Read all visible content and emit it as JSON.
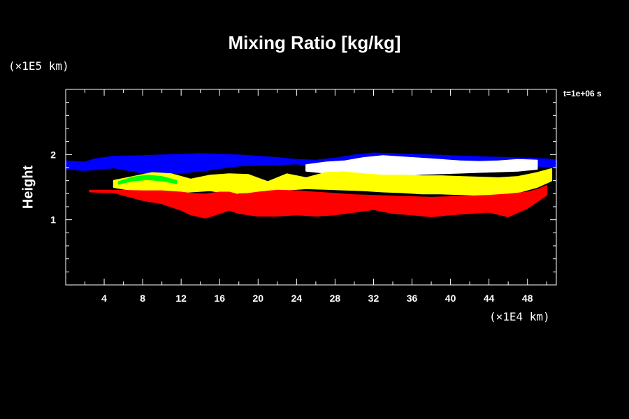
{
  "chart_data": {
    "type": "area",
    "title": "Mixing Ratio [kg/kg]",
    "ylabel": "Height",
    "y_unit_label": "(×1E5 km)",
    "x_unit_label": "(×1E4 km)",
    "time_label": "t=1e+06 s",
    "xlim": [
      0,
      51
    ],
    "ylim": [
      0,
      3
    ],
    "x_ticks": [
      4,
      8,
      12,
      16,
      20,
      24,
      28,
      32,
      36,
      40,
      44,
      48
    ],
    "y_ticks": [
      1,
      2
    ],
    "x_minor_step": 2,
    "y_minor_step": 0.2,
    "grid": false,
    "colors": {
      "background": "#000000",
      "axes": "#ffffff",
      "layer_blue": "#0000ff",
      "layer_white": "#ffffff",
      "layer_yellow": "#ffff00",
      "layer_green": "#00ff00",
      "layer_red": "#ff0000"
    },
    "layers": [
      {
        "color": "blue",
        "x": [
          0,
          2,
          3,
          5,
          8,
          10,
          12,
          14,
          16,
          18,
          20,
          22,
          24,
          26,
          28,
          30,
          32,
          34,
          36,
          38,
          40,
          42,
          44,
          46,
          48,
          50,
          51
        ],
        "top": [
          1.9,
          1.88,
          1.93,
          1.97,
          1.98,
          1.99,
          2.0,
          2.01,
          2.0,
          1.99,
          1.97,
          1.95,
          1.92,
          1.91,
          1.94,
          1.99,
          2.02,
          2.01,
          2.0,
          1.99,
          1.98,
          1.97,
          1.96,
          1.95,
          1.94,
          1.93,
          1.91
        ],
        "bottom": [
          1.78,
          1.76,
          1.77,
          1.8,
          1.72,
          1.7,
          1.72,
          1.75,
          1.79,
          1.83,
          1.84,
          1.85,
          1.86,
          1.83,
          1.8,
          1.82,
          1.81,
          1.79,
          1.78,
          1.77,
          1.76,
          1.76,
          1.79,
          1.82,
          1.83,
          1.82,
          1.8
        ]
      },
      {
        "color": "white",
        "x": [
          25,
          27,
          29,
          31,
          33,
          35,
          37,
          39,
          41,
          43,
          45,
          47,
          49
        ],
        "top": [
          1.84,
          1.88,
          1.9,
          1.95,
          1.98,
          1.96,
          1.94,
          1.92,
          1.9,
          1.89,
          1.9,
          1.92,
          1.91
        ],
        "bottom": [
          1.75,
          1.72,
          1.7,
          1.68,
          1.66,
          1.68,
          1.7,
          1.71,
          1.72,
          1.73,
          1.74,
          1.75,
          1.78
        ]
      },
      {
        "color": "yellow",
        "x": [
          5,
          7,
          9,
          11,
          13,
          15,
          17,
          19,
          21,
          23,
          25,
          27,
          29,
          31,
          33,
          35,
          37,
          39,
          41,
          43,
          45,
          47,
          49,
          50.5
        ],
        "top": [
          1.6,
          1.66,
          1.72,
          1.7,
          1.62,
          1.68,
          1.7,
          1.69,
          1.58,
          1.7,
          1.64,
          1.72,
          1.73,
          1.7,
          1.68,
          1.68,
          1.67,
          1.67,
          1.66,
          1.65,
          1.64,
          1.66,
          1.72,
          1.78
        ],
        "bottom": [
          1.5,
          1.45,
          1.42,
          1.4,
          1.43,
          1.45,
          1.4,
          1.42,
          1.45,
          1.46,
          1.48,
          1.47,
          1.46,
          1.45,
          1.43,
          1.42,
          1.4,
          1.4,
          1.39,
          1.38,
          1.38,
          1.42,
          1.5,
          1.6
        ]
      },
      {
        "color": "green",
        "x": [
          5.5,
          7,
          8.5,
          10,
          11.5
        ],
        "top": [
          1.58,
          1.65,
          1.68,
          1.66,
          1.6
        ],
        "bottom": [
          1.55,
          1.6,
          1.62,
          1.6,
          1.56
        ]
      },
      {
        "color": "red",
        "x": [
          2.5,
          5,
          8,
          10,
          12,
          13,
          14.5,
          16,
          17,
          18,
          20,
          22,
          24,
          26,
          28,
          30,
          32,
          34,
          36,
          38,
          40,
          42,
          44,
          46,
          48,
          49,
          50
        ],
        "top": [
          1.45,
          1.45,
          1.44,
          1.44,
          1.42,
          1.4,
          1.39,
          1.42,
          1.42,
          1.38,
          1.42,
          1.45,
          1.44,
          1.42,
          1.4,
          1.38,
          1.37,
          1.36,
          1.35,
          1.34,
          1.35,
          1.36,
          1.37,
          1.39,
          1.42,
          1.46,
          1.52
        ],
        "bottom": [
          1.43,
          1.42,
          1.3,
          1.25,
          1.15,
          1.08,
          1.03,
          1.1,
          1.15,
          1.1,
          1.06,
          1.06,
          1.08,
          1.06,
          1.08,
          1.12,
          1.16,
          1.1,
          1.08,
          1.05,
          1.08,
          1.1,
          1.12,
          1.05,
          1.18,
          1.28,
          1.38
        ]
      }
    ]
  }
}
